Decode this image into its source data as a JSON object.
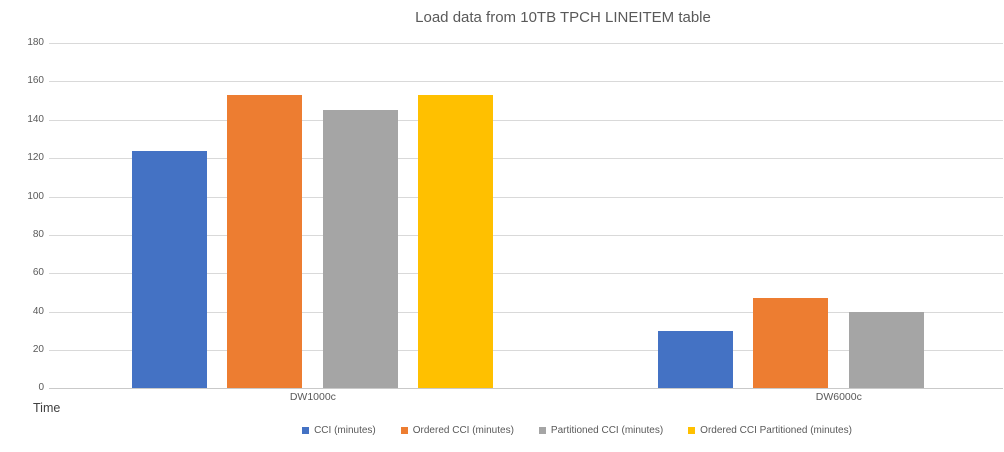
{
  "title": "Load data from 10TB TPCH LINEITEM table",
  "chart_data": {
    "type": "bar",
    "title": "Load data from 10TB TPCH LINEITEM table",
    "categories": [
      "DW1000c",
      "DW6000c"
    ],
    "series": [
      {
        "name": "CCI (minutes)",
        "color": "#4472C4",
        "values": [
          124,
          30
        ]
      },
      {
        "name": "Ordered CCI (minutes)",
        "color": "#ED7D31",
        "values": [
          153,
          47
        ]
      },
      {
        "name": "Partitioned CCI (minutes)",
        "color": "#A5A5A5",
        "values": [
          145,
          40
        ]
      },
      {
        "name": "Ordered CCI Partitioned (minutes)",
        "color": "#FFC000",
        "values": [
          153,
          0
        ]
      }
    ],
    "xlabel": "",
    "ylabel": "Time",
    "ylim": [
      0,
      180
    ],
    "yticks": [
      0,
      20,
      40,
      60,
      80,
      100,
      120,
      140,
      160,
      180
    ],
    "grid": true,
    "legend_position": "bottom",
    "colors": {
      "gridline": "#D9D9D9",
      "axis_text": "#595959",
      "title_text": "#595959"
    }
  }
}
